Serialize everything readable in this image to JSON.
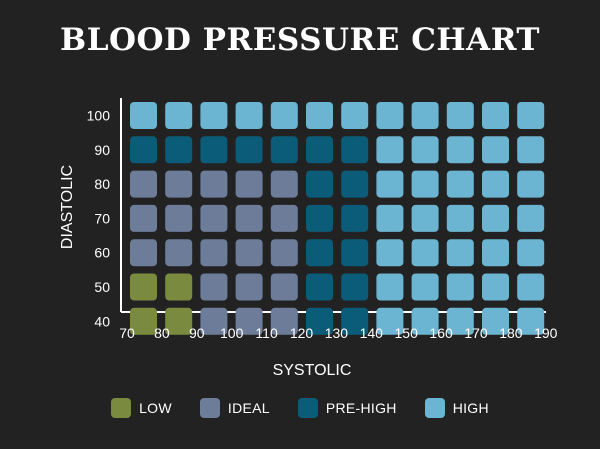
{
  "chart_data": {
    "type": "heatmap",
    "title": "BLOOD PRESSURE CHART",
    "xlabel": "SYSTOLIC",
    "ylabel": "DIASTOLIC",
    "x": [
      70,
      80,
      90,
      100,
      110,
      120,
      130,
      140,
      150,
      160,
      170,
      180,
      190
    ],
    "y": [
      100,
      90,
      80,
      70,
      60,
      50,
      40
    ],
    "categories": [
      {
        "key": "low",
        "label": "LOW",
        "color": "#7a8b3f"
      },
      {
        "key": "ideal",
        "label": "IDEAL",
        "color": "#6d7c99"
      },
      {
        "key": "prehigh",
        "label": "PRE-HIGH",
        "color": "#0b5c78"
      },
      {
        "key": "high",
        "label": "HIGH",
        "color": "#6bb4d2"
      }
    ],
    "grid": [
      [
        "high",
        "high",
        "high",
        "high",
        "high",
        "high",
        "high",
        "high",
        "high",
        "high",
        "high",
        "high"
      ],
      [
        "prehigh",
        "prehigh",
        "prehigh",
        "prehigh",
        "prehigh",
        "prehigh",
        "prehigh",
        "high",
        "high",
        "high",
        "high",
        "high"
      ],
      [
        "ideal",
        "ideal",
        "ideal",
        "ideal",
        "ideal",
        "prehigh",
        "prehigh",
        "high",
        "high",
        "high",
        "high",
        "high"
      ],
      [
        "ideal",
        "ideal",
        "ideal",
        "ideal",
        "ideal",
        "prehigh",
        "prehigh",
        "high",
        "high",
        "high",
        "high",
        "high"
      ],
      [
        "ideal",
        "ideal",
        "ideal",
        "ideal",
        "ideal",
        "prehigh",
        "prehigh",
        "high",
        "high",
        "high",
        "high",
        "high"
      ],
      [
        "low",
        "low",
        "ideal",
        "ideal",
        "ideal",
        "prehigh",
        "prehigh",
        "high",
        "high",
        "high",
        "high",
        "high"
      ],
      [
        "low",
        "low",
        "ideal",
        "ideal",
        "ideal",
        "prehigh",
        "prehigh",
        "high",
        "high",
        "high",
        "high",
        "high"
      ]
    ]
  }
}
